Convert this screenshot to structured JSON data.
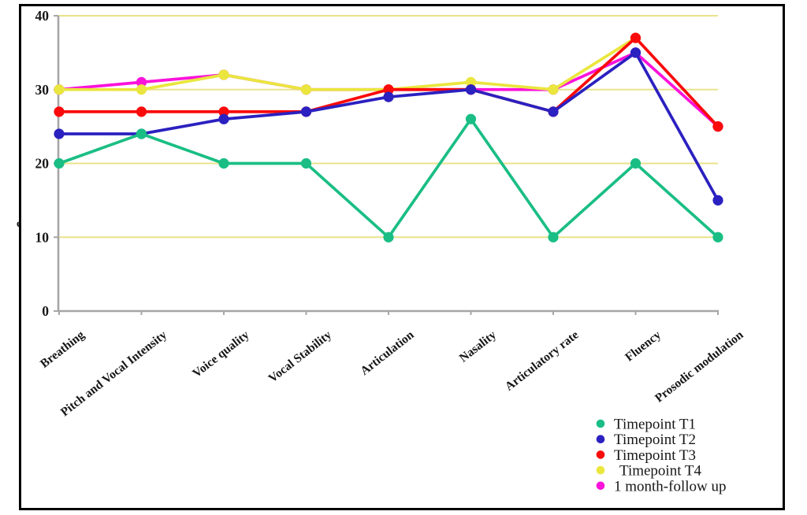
{
  "figure": {
    "background": "#ffffff",
    "border_color": "#000000"
  },
  "y_axis": {
    "ticks": [
      "40",
      "30",
      "20",
      "10",
      "0"
    ],
    "tick_values": [
      40,
      30,
      20,
      10,
      0
    ],
    "partial_label": "e"
  },
  "colors": {
    "gridline": "#e9e38b",
    "axis": "#a6a6a6",
    "text": "#161616"
  },
  "chart_data": {
    "type": "line",
    "title": "",
    "xlabel": "",
    "ylabel": "",
    "ylim": [
      0,
      40
    ],
    "yticks": [
      0,
      10,
      20,
      30,
      40
    ],
    "grid": true,
    "legend_position": "bottom-right",
    "categories": [
      "Breathing",
      "Pitch and Vocal Intensity",
      "Voice quality",
      "Vocal Stability",
      "Articulation",
      "Nasality",
      "Articulatory rate",
      "Fluency",
      "Prosodic modulation"
    ],
    "series": [
      {
        "name": "Timepoint T1",
        "color": "#1abe84",
        "values": [
          20,
          24,
          20,
          20,
          10,
          26,
          10,
          20,
          10
        ]
      },
      {
        "name": "Timepoint T2",
        "color": "#2b20c0",
        "values": [
          24,
          24,
          26,
          27,
          29,
          30,
          27,
          35,
          15
        ]
      },
      {
        "name": "Timepoint T3",
        "color": "#fa0a0a",
        "values": [
          27,
          27,
          27,
          27,
          30,
          30,
          27,
          37,
          25
        ]
      },
      {
        "name": " Timepoint T4",
        "color": "#eae63e",
        "values": [
          30,
          30,
          32,
          30,
          30,
          31,
          30,
          37,
          null
        ]
      },
      {
        "name": "1 month-follow up",
        "color": "#fb12db",
        "values": [
          30,
          31,
          32,
          30,
          30,
          30,
          30,
          35,
          25
        ]
      }
    ],
    "z_order": [
      4,
      3,
      2,
      1,
      0
    ]
  }
}
